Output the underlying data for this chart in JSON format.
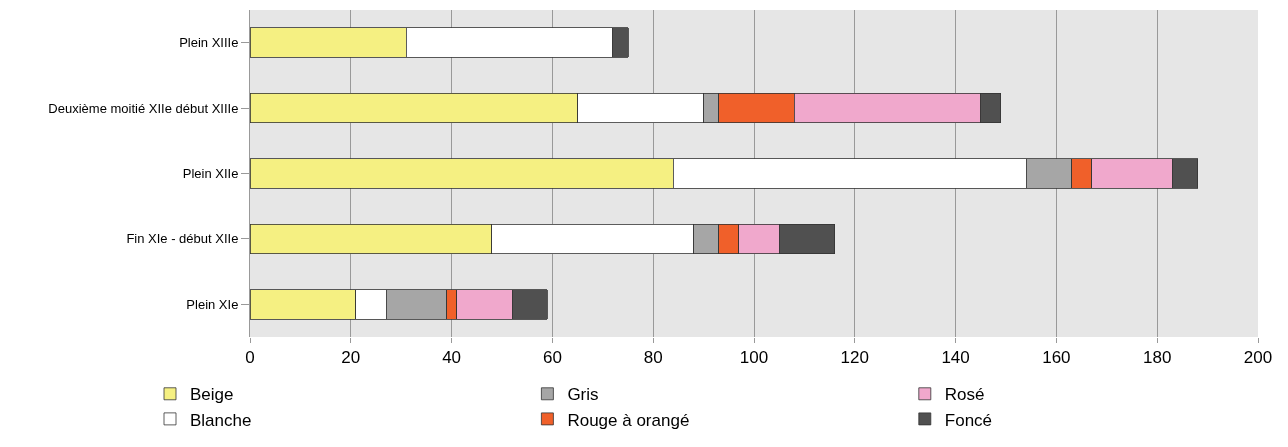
{
  "chart_data": {
    "type": "bar",
    "orientation": "horizontal",
    "stacked": true,
    "categories": [
      "Plein XIIIe",
      "Deuxième moitié XIIe début XIIIe",
      "Plein XIIe",
      "Fin XIe - début XIIe",
      "Plein XIe"
    ],
    "series": [
      {
        "name": "Beige",
        "color": "#f5f082",
        "values": [
          31,
          65,
          84,
          48,
          21
        ]
      },
      {
        "name": "Blanche",
        "color": "#ffffff",
        "values": [
          41,
          25,
          70,
          40,
          6
        ]
      },
      {
        "name": "Gris",
        "color": "#a6a6a6",
        "values": [
          null,
          3,
          9,
          5,
          12
        ]
      },
      {
        "name": "Rouge à orangé",
        "color": "#f0602a",
        "values": [
          null,
          15,
          4,
          4,
          2
        ]
      },
      {
        "name": "Rosé",
        "color": "#f0a8cc",
        "values": [
          null,
          37,
          16,
          8,
          11
        ]
      },
      {
        "name": "Foncé",
        "color": "#505050",
        "values": [
          3,
          4,
          5,
          11,
          7
        ]
      }
    ],
    "xlim": [
      0,
      200
    ],
    "xticks": [
      0,
      20,
      40,
      60,
      80,
      100,
      120,
      140,
      160,
      180,
      200
    ],
    "grid": "x",
    "legend": "bottom"
  }
}
